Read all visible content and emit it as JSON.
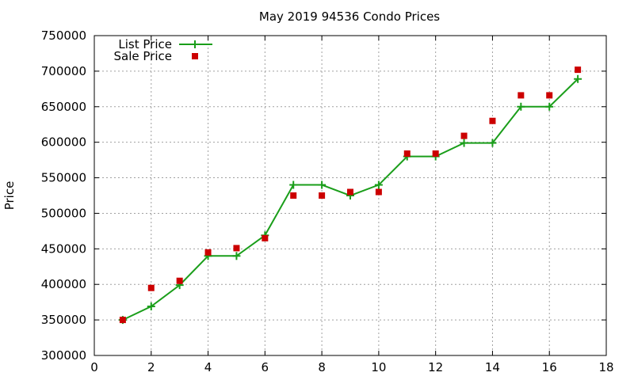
{
  "chart_data": {
    "type": "line",
    "title": "May 2019 94536 Condo Prices",
    "xlabel": "",
    "ylabel": "Price",
    "xlim": [
      0,
      18
    ],
    "ylim": [
      300000,
      750000
    ],
    "xticks": [
      0,
      2,
      4,
      6,
      8,
      10,
      12,
      14,
      16,
      18
    ],
    "yticks": [
      300000,
      350000,
      400000,
      450000,
      500000,
      550000,
      600000,
      650000,
      700000,
      750000
    ],
    "x_tick_labels": [
      "0",
      "2",
      "4",
      "6",
      "8",
      "10",
      "12",
      "14",
      "16",
      "18"
    ],
    "y_tick_labels": [
      "300000",
      "350000",
      "400000",
      "450000",
      "500000",
      "550000",
      "600000",
      "650000",
      "700000",
      "750000"
    ],
    "grid": true,
    "legend_position": "top-left",
    "x": [
      1,
      2,
      3,
      4,
      5,
      6,
      7,
      8,
      9,
      10,
      11,
      12,
      13,
      14,
      15,
      16,
      17
    ],
    "series": [
      {
        "name": "List Price",
        "style": "line-plus",
        "color": "#1a9e1a",
        "values": [
          350000,
          369000,
          399000,
          440000,
          440000,
          469000,
          540000,
          540000,
          525000,
          540000,
          580000,
          580000,
          599000,
          599000,
          650000,
          650000,
          689000
        ]
      },
      {
        "name": "Sale Price",
        "style": "square",
        "color": "#cc0000",
        "values": [
          350000,
          395000,
          405000,
          445000,
          451000,
          465000,
          525000,
          525000,
          530000,
          530000,
          584000,
          584000,
          609000,
          630000,
          666000,
          666000,
          702000
        ]
      }
    ]
  }
}
